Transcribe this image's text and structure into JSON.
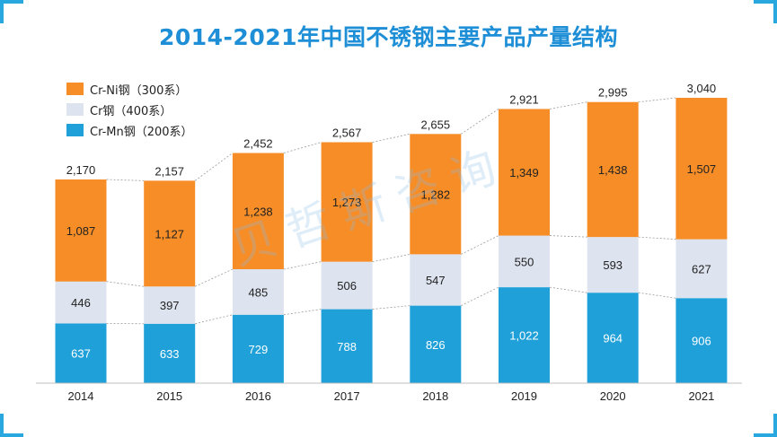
{
  "colors": {
    "accent": "#29a8e0",
    "cr_ni": "#f68d27",
    "cr": "#dde3ef",
    "cr_mn": "#1fa0d8",
    "title": "#1e8fd6"
  },
  "watermark_text": "贝哲斯咨询",
  "chart_data": {
    "type": "bar",
    "stacked": true,
    "title": "2014-2021年中国不锈钢主要产品产量结构",
    "categories": [
      "2014",
      "2015",
      "2016",
      "2017",
      "2018",
      "2019",
      "2020",
      "2021"
    ],
    "series": [
      {
        "name": "Cr-Mn钢（200系）",
        "values": [
          637,
          633,
          729,
          788,
          826,
          1022,
          964,
          906
        ],
        "labels": [
          "637",
          "633",
          "729",
          "788",
          "826",
          "1,022",
          "964",
          "906"
        ]
      },
      {
        "name": "Cr钢（400系）",
        "values": [
          446,
          397,
          485,
          506,
          547,
          550,
          593,
          627
        ],
        "labels": [
          "446",
          "397",
          "485",
          "506",
          "547",
          "550",
          "593",
          "627"
        ]
      },
      {
        "name": "Cr-Ni钢（300系）",
        "values": [
          1087,
          1127,
          1238,
          1273,
          1282,
          1349,
          1438,
          1507
        ],
        "labels": [
          "1,087",
          "1,127",
          "1,238",
          "1,273",
          "1,282",
          "1,349",
          "1,438",
          "1,507"
        ]
      }
    ],
    "totals": [
      2170,
      2157,
      2452,
      2567,
      2655,
      2921,
      2995,
      3040
    ],
    "total_labels": [
      "2,170",
      "2,157",
      "2,452",
      "2,567",
      "2,655",
      "2,921",
      "2,995",
      "3,040"
    ],
    "legend": [
      "Cr-Ni钢（300系）",
      "Cr钢（400系）",
      "Cr-Mn钢（200系）"
    ],
    "legend_position": "top-left",
    "ylim": [
      0,
      3200
    ],
    "grid": false,
    "xlabel": "",
    "ylabel": ""
  }
}
